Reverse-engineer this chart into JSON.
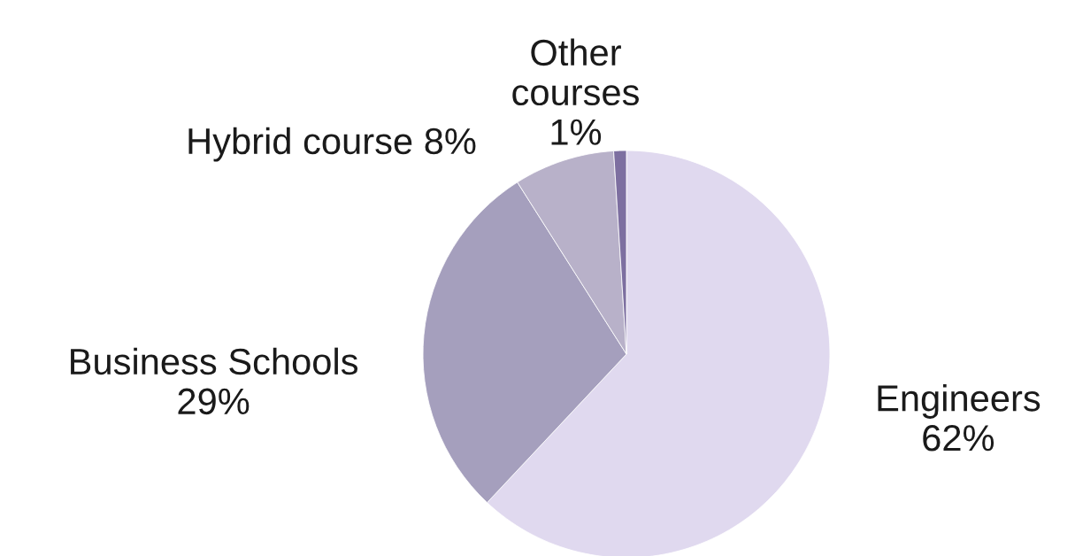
{
  "chart_data": {
    "type": "pie",
    "categories": [
      "Engineers",
      "Business Schools",
      "Hybrid course",
      "Other courses"
    ],
    "values": [
      62,
      29,
      8,
      1
    ],
    "colors": [
      "#e0d9ef",
      "#a59fbd",
      "#b8b1c9",
      "#7d6fa0"
    ],
    "value_labels": [
      "62%",
      "29%",
      "8%",
      "1%"
    ],
    "legend": false
  }
}
